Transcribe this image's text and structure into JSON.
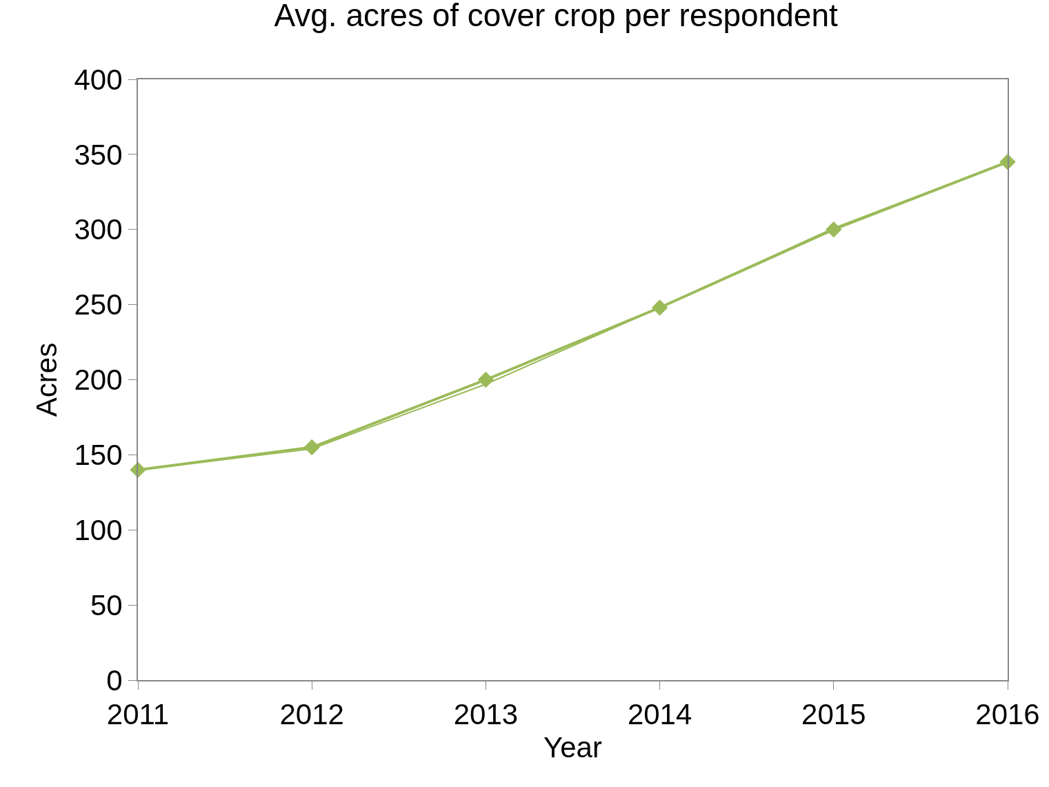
{
  "chart_data": {
    "type": "line",
    "title": "Avg. acres of cover crop per respondent",
    "xlabel": "Year",
    "ylabel": "Acres",
    "x": [
      2011,
      2012,
      2013,
      2014,
      2015,
      2016
    ],
    "series": [
      {
        "color": "#9bbb59",
        "values": [
          140,
          155,
          200,
          248,
          300,
          345
        ]
      },
      {
        "color": "#9bbb59",
        "marker": "none",
        "values": [
          140,
          154,
          197,
          248,
          301,
          345
        ]
      }
    ],
    "xlim": [
      2011,
      2016
    ],
    "xticks": [
      2011,
      2012,
      2013,
      2014,
      2015,
      2016
    ],
    "ylim": [
      0,
      400
    ],
    "yticks": [
      0,
      50,
      100,
      150,
      200,
      250,
      300,
      350,
      400
    ],
    "marker": "diamond",
    "line_style": "solid"
  }
}
